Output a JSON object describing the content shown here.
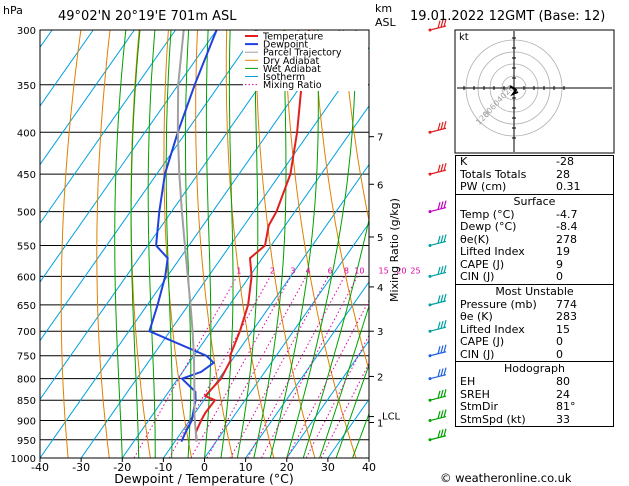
{
  "header": {
    "location": "49°02'N  20°19'E  701m  ASL",
    "datetime": "19.01.2022  12GMT  (Base: 12)",
    "unit_p": "hPa",
    "unit_km": "km",
    "unit_asl": "ASL"
  },
  "chart_data": {
    "type": "skew-t",
    "xlabel": "Dewpoint / Temperature (°C)",
    "ylabel": "",
    "ylabel_right": "Mixing Ratio (g/kg)",
    "pressure_levels": [
      300,
      350,
      400,
      450,
      500,
      550,
      600,
      650,
      700,
      750,
      800,
      850,
      900,
      950,
      1000
    ],
    "temp_ticks": [
      -40,
      -30,
      -20,
      -10,
      0,
      10,
      20,
      30,
      40
    ],
    "xlim": [
      -40,
      40
    ],
    "ylim": [
      1000,
      300
    ],
    "height_km": [
      {
        "label": "7",
        "p": 405
      },
      {
        "label": "6",
        "p": 463
      },
      {
        "label": "5",
        "p": 537
      },
      {
        "label": "4",
        "p": 618
      },
      {
        "label": "3",
        "p": 700
      },
      {
        "label": "2",
        "p": 795
      },
      {
        "label": "1",
        "p": 905
      }
    ],
    "lcl_label": "LCL",
    "lcl_p": 890,
    "mixing_ratio_labels": [
      "1",
      "2",
      "3",
      "4",
      "6",
      "8",
      "10",
      "15",
      "20",
      "25"
    ],
    "mixing_ratio_values": [
      1,
      2,
      3,
      4,
      6,
      8,
      10,
      15,
      20,
      25
    ],
    "legend": [
      "Temperature",
      "Dewpoint",
      "Parcel Trajectory",
      "Dry Adiabat",
      "Wet Adiabat",
      "Isotherm",
      "Mixing Ratio"
    ],
    "series": [
      {
        "name": "Temperature",
        "color": "#e02020",
        "points": [
          [
            955,
            -4.7
          ],
          [
            930,
            -6.5
          ],
          [
            900,
            -7.2
          ],
          [
            880,
            -7.5
          ],
          [
            850,
            -7.3
          ],
          [
            840,
            -10.4
          ],
          [
            800,
            -9.5
          ],
          [
            760,
            -10.3
          ],
          [
            750,
            -11.2
          ],
          [
            700,
            -13.0
          ],
          [
            650,
            -15.5
          ],
          [
            600,
            -19.5
          ],
          [
            570,
            -23.0
          ],
          [
            550,
            -21.5
          ],
          [
            520,
            -24.0
          ],
          [
            500,
            -24.5
          ],
          [
            450,
            -27.5
          ],
          [
            400,
            -33.0
          ],
          [
            350,
            -40.0
          ],
          [
            300,
            -47.5
          ]
        ]
      },
      {
        "name": "Dewpoint",
        "color": "#2040e0",
        "points": [
          [
            955,
            -8.4
          ],
          [
            930,
            -9.0
          ],
          [
            900,
            -9.5
          ],
          [
            880,
            -10.5
          ],
          [
            850,
            -12.0
          ],
          [
            830,
            -13.5
          ],
          [
            800,
            -19.0
          ],
          [
            785,
            -15.5
          ],
          [
            765,
            -14.0
          ],
          [
            750,
            -17.0
          ],
          [
            700,
            -35.0
          ],
          [
            650,
            -37.5
          ],
          [
            600,
            -40.5
          ],
          [
            570,
            -43.0
          ],
          [
            550,
            -48.0
          ],
          [
            500,
            -53.0
          ],
          [
            450,
            -58.0
          ],
          [
            400,
            -62.0
          ],
          [
            350,
            -66.0
          ],
          [
            300,
            -70.0
          ]
        ]
      },
      {
        "name": "Parcel Trajectory",
        "color": "#a0a0a0",
        "points": [
          [
            955,
            -4.7
          ],
          [
            890,
            -9.5
          ],
          [
            850,
            -12.3
          ],
          [
            800,
            -16.0
          ],
          [
            750,
            -20.0
          ],
          [
            700,
            -24.5
          ],
          [
            650,
            -29.5
          ],
          [
            600,
            -35.0
          ],
          [
            550,
            -41.0
          ],
          [
            500,
            -47.5
          ],
          [
            450,
            -54.5
          ],
          [
            400,
            -62.0
          ],
          [
            350,
            -70.0
          ],
          [
            300,
            -78.0
          ]
        ]
      }
    ]
  },
  "hodograph": {
    "label": "kt",
    "ring_labels": [
      "20",
      "40",
      "60",
      "80",
      "120"
    ],
    "max_kt": 120
  },
  "indices": [
    {
      "label": "K",
      "value": "-28"
    },
    {
      "label": "Totals Totals",
      "value": "28"
    },
    {
      "label": "PW (cm)",
      "value": "0.31"
    }
  ],
  "surface": {
    "title": "Surface",
    "rows": [
      {
        "label": "Temp (°C)",
        "value": "-4.7"
      },
      {
        "label": "Dewp (°C)",
        "value": "-8.4"
      },
      {
        "label": "θe(K)",
        "value": "278"
      },
      {
        "label": "Lifted Index",
        "value": "19"
      },
      {
        "label": "CAPE (J)",
        "value": "9"
      },
      {
        "label": "CIN (J)",
        "value": "0"
      }
    ]
  },
  "most_unstable": {
    "title": "Most Unstable",
    "rows": [
      {
        "label": "Pressure (mb)",
        "value": "774"
      },
      {
        "label": "θe (K)",
        "value": "283"
      },
      {
        "label": "Lifted Index",
        "value": "15"
      },
      {
        "label": "CAPE (J)",
        "value": "0"
      },
      {
        "label": "CIN (J)",
        "value": "0"
      }
    ]
  },
  "hodograph_stats": {
    "title": "Hodograph",
    "rows": [
      {
        "label": "EH",
        "value": "80"
      },
      {
        "label": "SREH",
        "value": "24"
      },
      {
        "label": "StmDir",
        "value": "81°"
      },
      {
        "label": "StmSpd (kt)",
        "value": "33"
      }
    ]
  },
  "footer": "© weatheronline.co.uk",
  "colors": {
    "temperature": "#e02020",
    "dewpoint": "#2040e0",
    "parcel": "#a0a0a0",
    "dry_adiabat": "#e08000",
    "wet_adiabat": "#00a000",
    "isotherm": "#00a0e0",
    "mixing_ratio": "#e000a0"
  }
}
